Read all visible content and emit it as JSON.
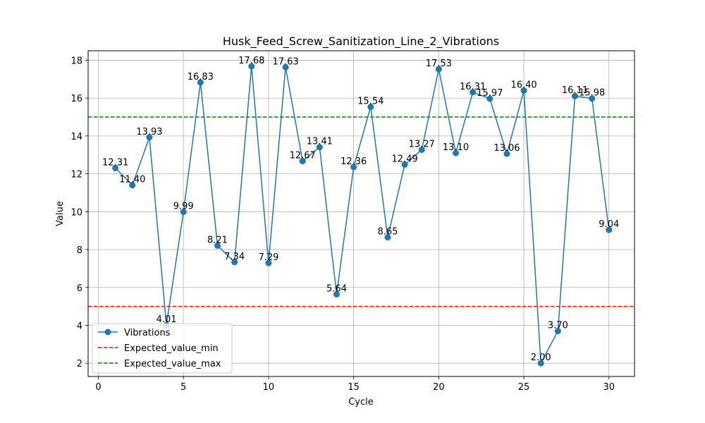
{
  "chart_data": {
    "type": "line",
    "title": "Husk_Feed_Screw_Sanitization_Line_2_Vibrations",
    "xlabel": "Cycle",
    "ylabel": "Value",
    "xlim": [
      -0.6,
      31.5
    ],
    "ylim": [
      1.3,
      18.5
    ],
    "xticks": [
      0,
      5,
      10,
      15,
      20,
      25,
      30
    ],
    "yticks": [
      2,
      4,
      6,
      8,
      10,
      12,
      14,
      16,
      18
    ],
    "grid": true,
    "legend_position": "lower-left",
    "series": [
      {
        "name": "Vibrations",
        "color": "#1f77b4",
        "x": [
          1,
          2,
          3,
          4,
          5,
          6,
          7,
          8,
          9,
          10,
          11,
          12,
          13,
          14,
          15,
          16,
          17,
          18,
          19,
          20,
          21,
          22,
          23,
          24,
          25,
          26,
          27,
          28,
          29,
          30
        ],
        "values": [
          12.31,
          11.4,
          13.93,
          4.01,
          9.99,
          16.83,
          8.21,
          7.34,
          17.68,
          7.29,
          17.63,
          12.67,
          13.41,
          5.64,
          12.36,
          15.54,
          8.65,
          12.49,
          13.27,
          17.53,
          13.1,
          16.31,
          15.97,
          13.06,
          16.4,
          2.0,
          3.7,
          16.11,
          15.98,
          9.04
        ],
        "labels": [
          "12.31",
          "11.40",
          "13.93",
          "4.01",
          "9.99",
          "16.83",
          "8.21",
          "7.34",
          "17.68",
          "7.29",
          "17.63",
          "12.67",
          "13.41",
          "5.64",
          "12.36",
          "15.54",
          "8.65",
          "12.49",
          "13.27",
          "17.53",
          "13.10",
          "16.31",
          "15.97",
          "13.06",
          "16.40",
          "2.00",
          "3.70",
          "16.11",
          "15.98",
          "9.04"
        ]
      }
    ],
    "reference_lines": [
      {
        "name": "Expected_value_min",
        "value": 5,
        "color": "#ff0000",
        "style": "dashed"
      },
      {
        "name": "Expected_value_max",
        "value": 15,
        "color": "#008000",
        "style": "dashed"
      }
    ]
  }
}
